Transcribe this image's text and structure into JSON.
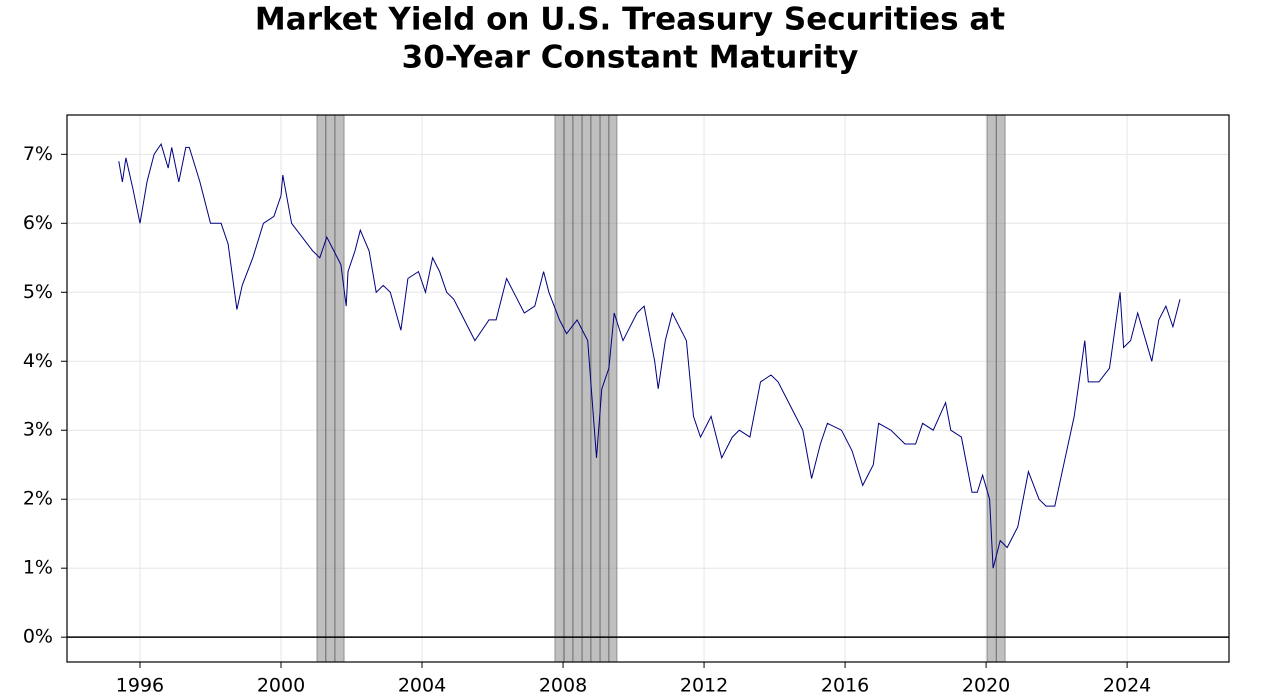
{
  "chart_data": {
    "type": "line",
    "title": [
      "Market Yield on U.S. Treasury Securities at",
      "30-Year Constant Maturity"
    ],
    "x": [
      1995.4,
      1995.5,
      1995.6,
      1995.8,
      1996.0,
      1996.2,
      1996.4,
      1996.6,
      1996.8,
      1996.9,
      1997.1,
      1997.3,
      1997.4,
      1997.7,
      1998.0,
      1998.3,
      1998.5,
      1998.75,
      1998.9,
      1999.2,
      1999.5,
      1999.8,
      2000.0,
      2000.05,
      2000.3,
      2000.6,
      2000.9,
      2001.1,
      2001.3,
      2001.5,
      2001.7,
      2001.85,
      2001.9,
      2002.1,
      2002.25,
      2002.5,
      2002.7,
      2002.9,
      2003.1,
      2003.4,
      2003.6,
      2003.9,
      2004.1,
      2004.3,
      2004.5,
      2004.7,
      2004.9,
      2005.1,
      2005.5,
      2005.9,
      2006.1,
      2006.4,
      2006.6,
      2006.9,
      2007.2,
      2007.45,
      2007.6,
      2007.9,
      2008.1,
      2008.4,
      2008.7,
      2008.95,
      2009.1,
      2009.3,
      2009.45,
      2009.7,
      2009.9,
      2010.1,
      2010.3,
      2010.6,
      2010.7,
      2010.9,
      2011.1,
      2011.4,
      2011.5,
      2011.7,
      2011.9,
      2012.2,
      2012.5,
      2012.8,
      2013.0,
      2013.3,
      2013.6,
      2013.9,
      2014.1,
      2014.4,
      2014.8,
      2015.05,
      2015.3,
      2015.5,
      2015.9,
      2016.2,
      2016.5,
      2016.8,
      2016.95,
      2017.3,
      2017.7,
      2018.0,
      2018.2,
      2018.5,
      2018.85,
      2019.0,
      2019.3,
      2019.6,
      2019.75,
      2019.9,
      2020.1,
      2020.2,
      2020.4,
      2020.6,
      2020.9,
      2021.2,
      2021.5,
      2021.7,
      2021.95,
      2022.2,
      2022.5,
      2022.8,
      2022.9,
      2023.2,
      2023.5,
      2023.8,
      2023.9,
      2024.1,
      2024.3,
      2024.7,
      2024.9,
      2025.1,
      2025.3,
      2025.5
    ],
    "series": [
      {
        "name": "30-Year Constant Maturity",
        "color": "#000080",
        "values": [
          6.9,
          6.6,
          6.95,
          6.5,
          6.0,
          6.6,
          7.0,
          7.15,
          6.8,
          7.1,
          6.6,
          7.1,
          7.1,
          6.6,
          6.0,
          6.0,
          5.7,
          4.75,
          5.1,
          5.5,
          6.0,
          6.1,
          6.4,
          6.7,
          6.0,
          5.8,
          5.6,
          5.5,
          5.8,
          5.6,
          5.4,
          4.8,
          5.3,
          5.6,
          5.9,
          5.6,
          5.0,
          5.1,
          5.0,
          4.45,
          5.2,
          5.3,
          5.0,
          5.5,
          5.3,
          5.0,
          4.9,
          4.7,
          4.3,
          4.6,
          4.6,
          5.2,
          5.0,
          4.7,
          4.8,
          5.3,
          5.0,
          4.6,
          4.4,
          4.6,
          4.3,
          2.6,
          3.6,
          3.9,
          4.7,
          4.3,
          4.5,
          4.7,
          4.8,
          4.0,
          3.6,
          4.3,
          4.7,
          4.4,
          4.3,
          3.2,
          2.9,
          3.2,
          2.6,
          2.9,
          3.0,
          2.9,
          3.7,
          3.8,
          3.7,
          3.4,
          3.0,
          2.3,
          2.8,
          3.1,
          3.0,
          2.7,
          2.2,
          2.5,
          3.1,
          3.0,
          2.8,
          2.8,
          3.1,
          3.0,
          3.4,
          3.0,
          2.9,
          2.1,
          2.1,
          2.35,
          2.0,
          1.0,
          1.4,
          1.3,
          1.6,
          2.4,
          2.0,
          1.9,
          1.9,
          2.5,
          3.2,
          4.3,
          3.7,
          3.7,
          3.9,
          5.0,
          4.2,
          4.3,
          4.7,
          4.0,
          4.6,
          4.8,
          4.5,
          4.9
        ]
      }
    ],
    "recession_bands": [
      [
        2001.02,
        2001.27,
        2001.53,
        2001.79
      ],
      [
        2007.77,
        2008.03,
        2008.28,
        2008.54,
        2008.79,
        2009.05,
        2009.3,
        2009.53
      ],
      [
        2020.03,
        2020.29,
        2020.54
      ]
    ],
    "xlim": [
      1993.93,
      2026.89
    ],
    "xticks": [
      1996,
      2000,
      2004,
      2008,
      2012,
      2016,
      2020,
      2024
    ],
    "ylim": [
      -0.36,
      7.57
    ],
    "yticks": [
      {
        "value": 0,
        "label": "0%"
      },
      {
        "value": 1,
        "label": "1%"
      },
      {
        "value": 2,
        "label": "2%"
      },
      {
        "value": 3,
        "label": "3%"
      },
      {
        "value": 4,
        "label": "4%"
      },
      {
        "value": 5,
        "label": "5%"
      },
      {
        "value": 6,
        "label": "6%"
      },
      {
        "value": 7,
        "label": "7%"
      }
    ],
    "grid": true
  }
}
